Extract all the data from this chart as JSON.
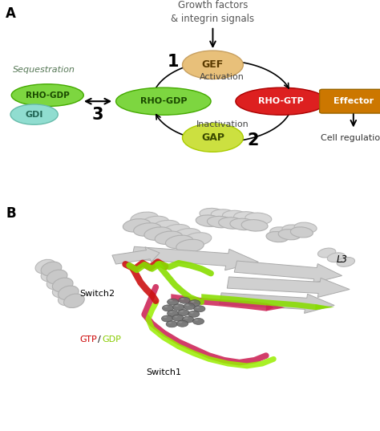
{
  "panel_A_label": "A",
  "panel_B_label": "B",
  "title_text": "Growth factors\n& integrin signals",
  "gef_label": "GEF",
  "gap_label": "GAP",
  "rho_gdp_label": "RHO-GDP",
  "rho_gtp_label": "RHO-GTP",
  "effector_label": "Effector",
  "gdi_label": "GDI",
  "activation_label": "Activation",
  "inactivation_label": "Inactivation",
  "sequestration_label": "Sequestration",
  "cell_reg_label": "Cell regulation",
  "num1": "1",
  "num2": "2",
  "num3": "3",
  "gef_color": "#e8c07a",
  "gap_color": "#cce040",
  "rho_gdp_color": "#7dd640",
  "rho_gtp_color": "#dd2020",
  "effector_color": "#cc7700",
  "gdi_color": "#90ddd0",
  "bg_color": "#ffffff",
  "gtp_color": "#cc0000",
  "gdp_color": "#88cc00",
  "switch1_label": "Switch1",
  "switch2_label": "Switch2",
  "l3_label": "L3"
}
